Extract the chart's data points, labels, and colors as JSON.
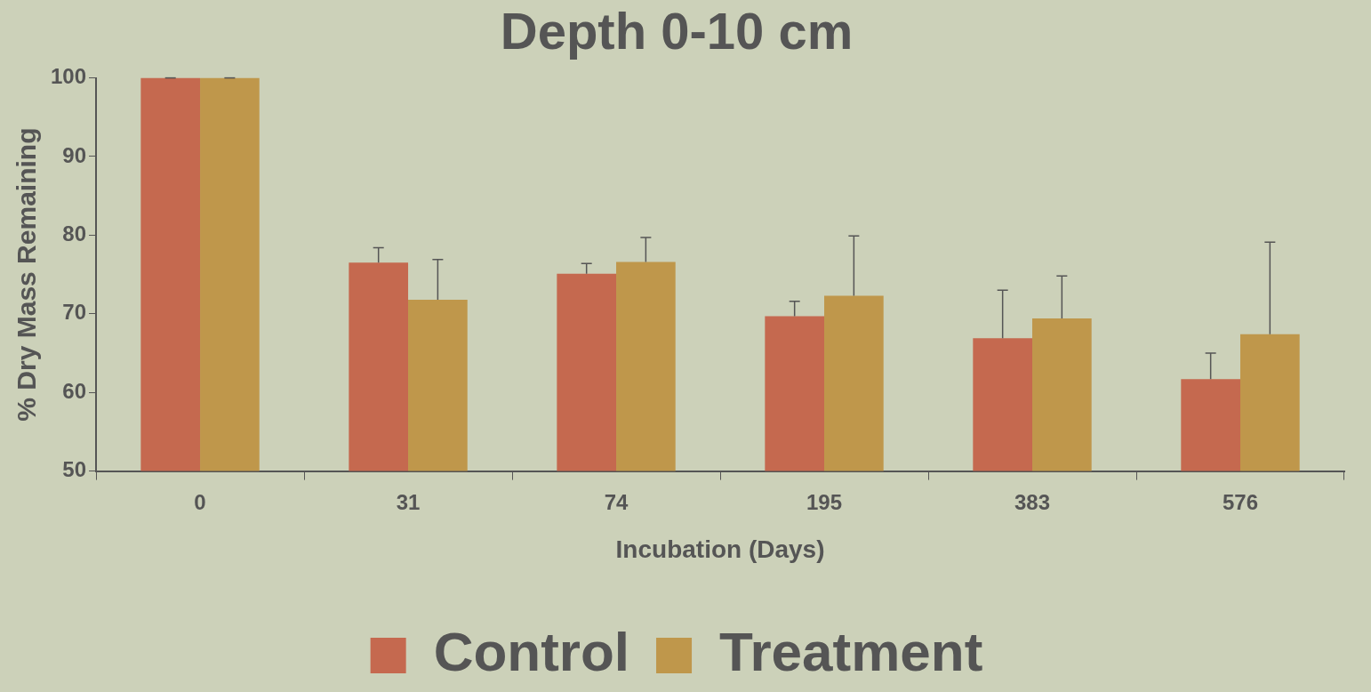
{
  "chart_data": {
    "type": "bar",
    "title": "Depth 0-10 cm",
    "xlabel": "Incubation (Days)",
    "ylabel": "% Dry Mass Remaining",
    "categories": [
      "0",
      "31",
      "74",
      "195",
      "383",
      "576"
    ],
    "series": [
      {
        "name": "Control",
        "color": "#c5694f",
        "values": [
          100,
          76.5,
          75.1,
          69.7,
          66.9,
          61.7
        ],
        "errors": [
          [
            100,
            100
          ],
          [
            76.5,
            78.4
          ],
          [
            75.1,
            76.4
          ],
          [
            69.7,
            71.6
          ],
          [
            66.9,
            73.0
          ],
          [
            61.7,
            65.0
          ]
        ]
      },
      {
        "name": "Treatment",
        "color": "#bf974b",
        "values": [
          100,
          71.8,
          76.6,
          72.3,
          69.4,
          67.4
        ],
        "errors": [
          [
            100,
            100
          ],
          [
            71.8,
            76.9
          ],
          [
            76.6,
            79.7
          ],
          [
            72.3,
            79.9
          ],
          [
            69.4,
            74.8
          ],
          [
            67.4,
            79.1
          ]
        ]
      }
    ],
    "ylim": [
      50,
      100
    ],
    "yticks": [
      50,
      60,
      70,
      80,
      90,
      100
    ],
    "grid": false,
    "legend": "bottom"
  }
}
